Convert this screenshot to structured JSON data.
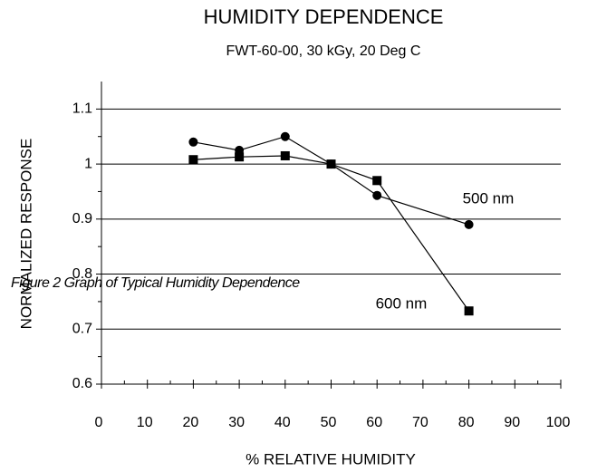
{
  "chart_data": {
    "type": "line",
    "title": "HUMIDITY DEPENDENCE",
    "subtitle": "FWT-60-00, 30 kGy,  20 Deg C",
    "x_label": "% RELATIVE HUMIDITY",
    "y_label": "NORMALIZED RESPONSE",
    "annotation": "Figure 2 Graph of Typical Humidity Dependence",
    "x": [
      20,
      30,
      40,
      50,
      60,
      80
    ],
    "series": [
      {
        "name": "500 nm",
        "color": "#000000",
        "marker": "circle",
        "values": [
          1.04,
          1.025,
          1.05,
          1.0,
          0.943,
          0.89
        ]
      },
      {
        "name": "600 nm",
        "color": "#000000",
        "marker": "square",
        "values": [
          1.008,
          1.013,
          1.015,
          1.0,
          0.97,
          0.733
        ]
      }
    ],
    "xlim": [
      0,
      100
    ],
    "xticks": [
      0,
      10,
      20,
      30,
      40,
      50,
      60,
      70,
      80,
      90,
      100
    ],
    "ylim": [
      0.6,
      1.15
    ],
    "yticks": [
      0.6,
      0.7,
      0.8,
      0.9,
      1,
      1.1
    ],
    "grid": true
  }
}
